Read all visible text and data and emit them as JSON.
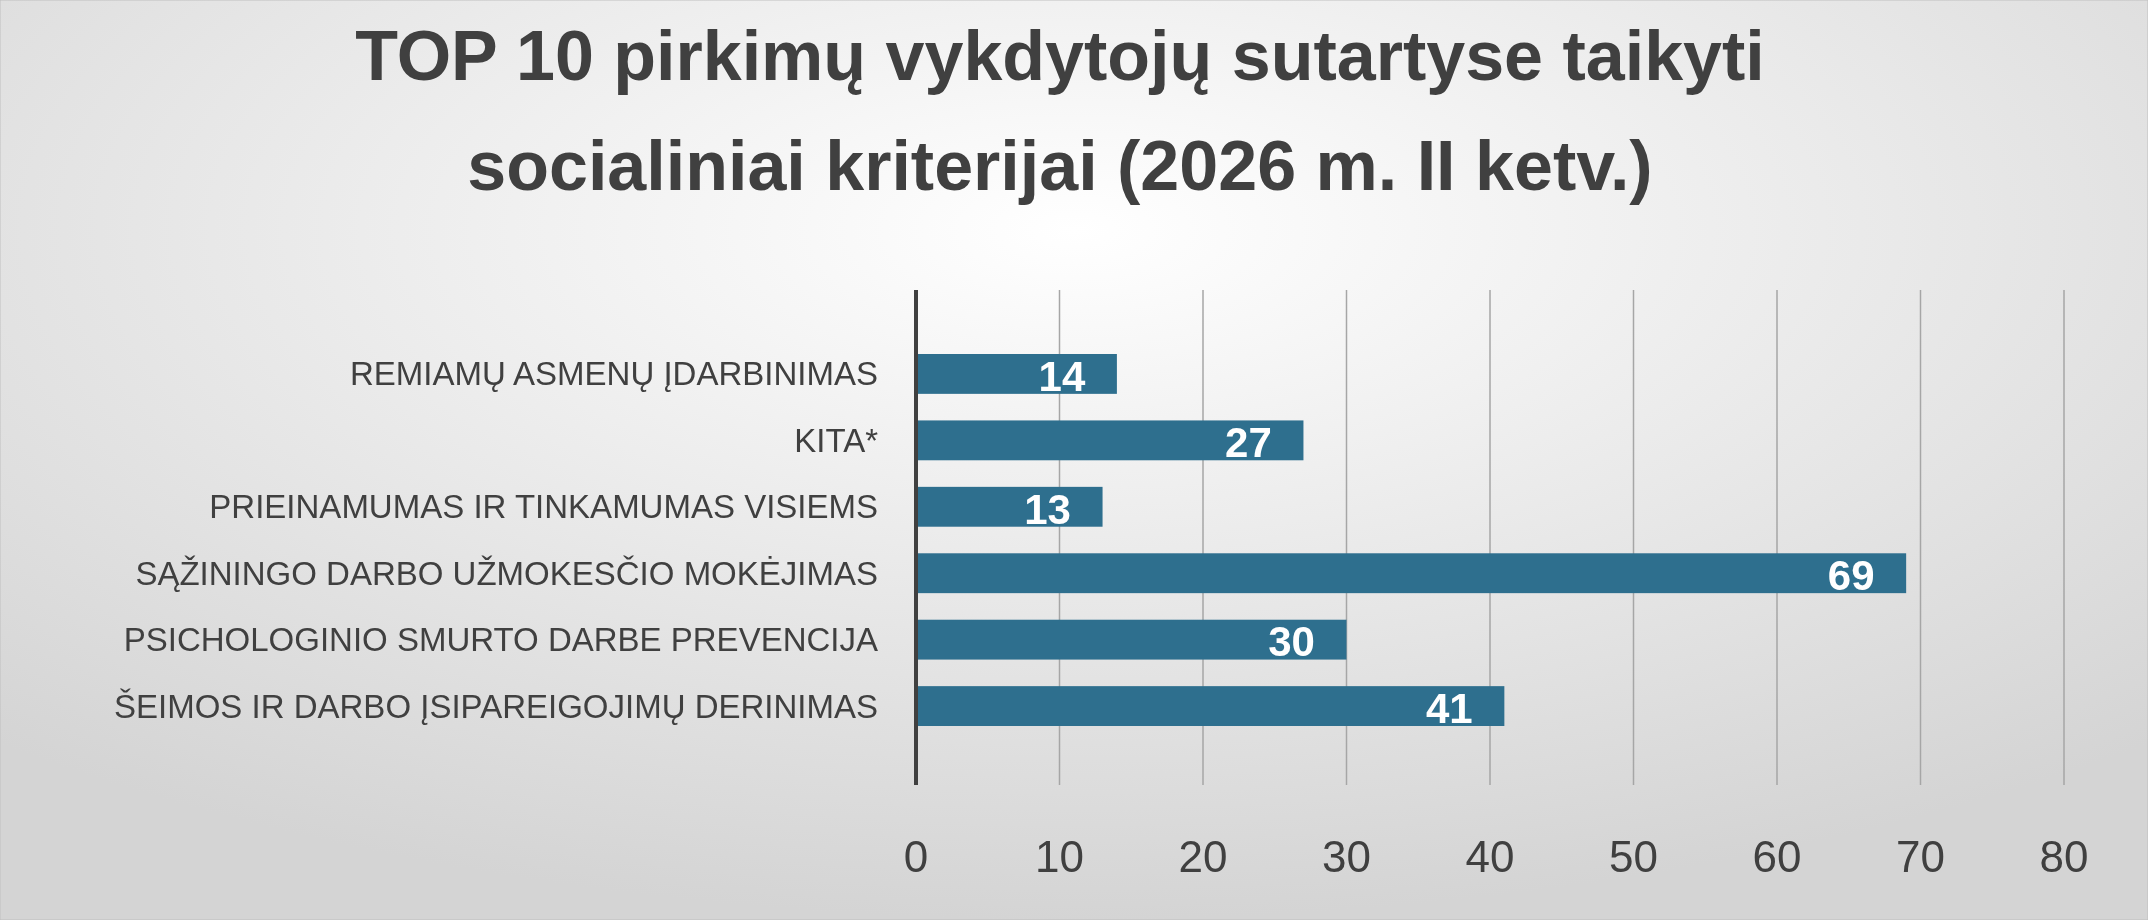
{
  "chart_data": {
    "type": "bar",
    "orientation": "horizontal",
    "title": "TOP 10 pirkimų vykdytojų sutartyse taikyti socialiniai kriterijai (2026 m. II ketv.)",
    "categories": [
      "REMIAMŲ ASMENŲ ĮDARBINIMAS",
      "KITA*",
      "PRIEINAMUMAS IR TINKAMUMAS VISIEMS",
      "SĄŽININGO DARBO UŽMOKESČIO MOKĖJIMAS",
      "PSICHOLOGINIO SMURTO DARBE PREVENCIJA",
      "ŠEIMOS IR DARBO ĮSIPAREIGOJIMŲ DERINIMAS"
    ],
    "values": [
      14,
      27,
      13,
      69,
      30,
      41
    ],
    "color": "#2e6f8e",
    "xlim": [
      0,
      80
    ],
    "xticks": [
      0,
      10,
      20,
      30,
      40,
      50,
      60,
      70,
      80
    ],
    "grid": "x",
    "data_labels": true
  }
}
